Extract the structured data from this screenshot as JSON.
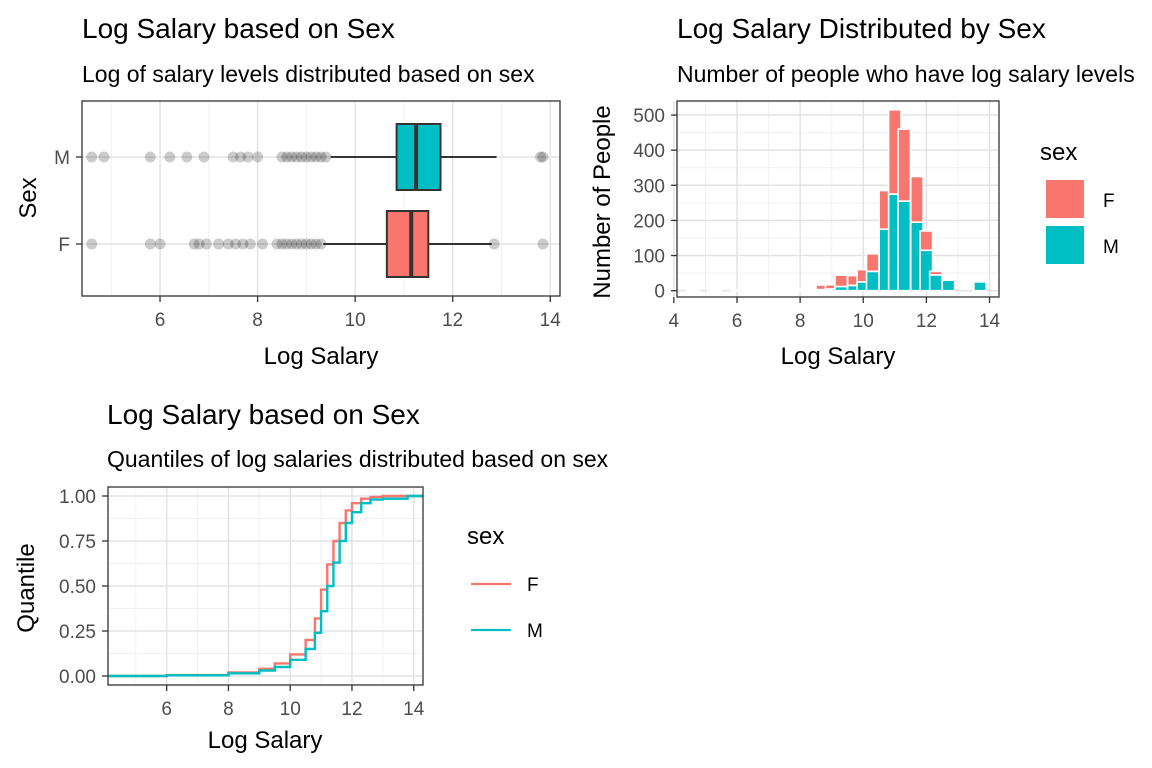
{
  "chart_data": [
    {
      "type": "boxplot",
      "title": "Log Salary based on Sex",
      "subtitle": "Log of salary levels distributed based on sex",
      "xlabel": "Log Salary",
      "ylabel": "Sex",
      "xlim": [
        4.4,
        14.2
      ],
      "xticks": [
        6,
        8,
        10,
        12,
        14
      ],
      "categories": [
        "F",
        "M"
      ],
      "grid": true,
      "boxes": [
        {
          "name": "F",
          "color": "#F8766D",
          "whisker_low": 9.35,
          "q1": 10.65,
          "median": 11.15,
          "q3": 11.5,
          "whisker_high": 12.8,
          "outliers": [
            4.6,
            5.8,
            6.0,
            6.7,
            6.8,
            6.95,
            7.2,
            7.4,
            7.55,
            7.7,
            7.85,
            8.1,
            8.4,
            8.5,
            8.6,
            8.7,
            8.8,
            8.9,
            9.0,
            9.1,
            9.2,
            9.3,
            12.85,
            13.85
          ]
        },
        {
          "name": "M",
          "color": "#00BFC4",
          "whisker_low": 9.5,
          "q1": 10.85,
          "median": 11.25,
          "q3": 11.75,
          "whisker_high": 12.9,
          "outliers": [
            4.6,
            4.85,
            5.8,
            6.2,
            6.55,
            6.9,
            7.5,
            7.65,
            7.8,
            8.0,
            8.5,
            8.6,
            8.7,
            8.8,
            8.9,
            9.0,
            9.1,
            9.2,
            9.3,
            9.4,
            13.8,
            13.85
          ]
        }
      ]
    },
    {
      "type": "bar",
      "stacked": true,
      "title": "Log Salary Distributed by Sex",
      "subtitle": "Number of people who have log salary levels",
      "xlabel": "Log Salary",
      "ylabel": "Number of People",
      "xlim": [
        4.1,
        14.3
      ],
      "ylim": [
        -18,
        540
      ],
      "xticks": [
        4,
        6,
        8,
        10,
        12,
        14
      ],
      "yticks": [
        0,
        100,
        200,
        300,
        400,
        500
      ],
      "legend": {
        "title": "sex",
        "position": "right"
      },
      "x": [
        4.6,
        5.0,
        5.3,
        5.7,
        6.0,
        6.3,
        6.7,
        7.0,
        7.3,
        7.7,
        8.0,
        8.3,
        8.7,
        9.0,
        9.3,
        9.7,
        10.0,
        10.3,
        10.7,
        11.0,
        11.3,
        11.7,
        12.0,
        12.3,
        12.7,
        13.0,
        13.3,
        13.7
      ],
      "series": [
        {
          "name": "M",
          "color": "#00BFC4",
          "values": [
            2,
            0,
            1,
            0,
            1,
            1,
            1,
            0,
            1,
            1,
            2,
            2,
            3,
            5,
            12,
            15,
            25,
            55,
            175,
            275,
            255,
            195,
            115,
            45,
            30,
            0,
            0,
            25
          ]
        },
        {
          "name": "F",
          "color": "#F8766D",
          "values": [
            0,
            0,
            0,
            0,
            0,
            0,
            0,
            1,
            1,
            1,
            2,
            3,
            13,
            12,
            32,
            28,
            35,
            50,
            110,
            240,
            205,
            130,
            55,
            10,
            4,
            0,
            0,
            0
          ]
        }
      ]
    },
    {
      "type": "line",
      "title": "Log Salary based on Sex",
      "subtitle": "Quantiles of log salaries distributed based on sex",
      "xlabel": "Log Salary",
      "ylabel": "Quantile",
      "xlim": [
        4.1,
        14.3
      ],
      "ylim": [
        -0.05,
        1.05
      ],
      "xticks": [
        6,
        8,
        10,
        12,
        14
      ],
      "yticks": [
        "0.00",
        "0.25",
        "0.50",
        "0.75",
        "1.00"
      ],
      "legend": {
        "title": "sex",
        "position": "right"
      },
      "series": [
        {
          "name": "F",
          "color": "#F8766D",
          "x": [
            4.1,
            6.0,
            8.0,
            9.0,
            9.5,
            10.0,
            10.5,
            10.8,
            11.0,
            11.2,
            11.4,
            11.6,
            11.8,
            12.0,
            12.3,
            12.6,
            13.0,
            14.3
          ],
          "y": [
            0.0,
            0.005,
            0.02,
            0.04,
            0.07,
            0.12,
            0.2,
            0.32,
            0.48,
            0.62,
            0.75,
            0.85,
            0.92,
            0.96,
            0.985,
            0.995,
            1.0,
            1.0
          ]
        },
        {
          "name": "M",
          "color": "#00BFC4",
          "x": [
            4.1,
            6.0,
            8.0,
            9.0,
            9.5,
            10.0,
            10.5,
            10.8,
            11.0,
            11.2,
            11.4,
            11.6,
            11.8,
            12.0,
            12.3,
            12.6,
            13.0,
            13.7,
            13.8,
            14.3
          ],
          "y": [
            0.0,
            0.004,
            0.015,
            0.03,
            0.05,
            0.09,
            0.15,
            0.24,
            0.36,
            0.5,
            0.63,
            0.75,
            0.85,
            0.91,
            0.96,
            0.98,
            0.985,
            0.985,
            1.0,
            1.0
          ]
        }
      ]
    }
  ]
}
